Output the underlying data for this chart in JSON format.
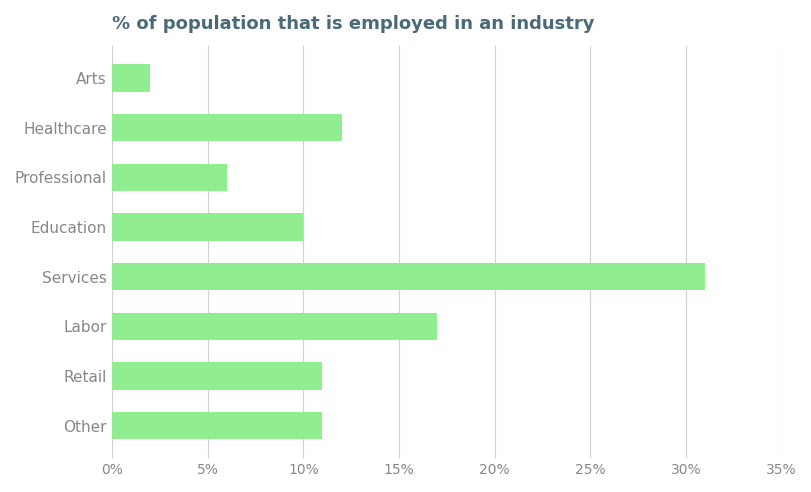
{
  "title": "% of population that is employed in an industry",
  "categories": [
    "Other",
    "Retail",
    "Labor",
    "Services",
    "Education",
    "Professional",
    "Healthcare",
    "Arts"
  ],
  "values": [
    11,
    11,
    17,
    31,
    10,
    6,
    12,
    2
  ],
  "bar_color": "#90EE90",
  "bar_edge_color": "none",
  "background_color": "#ffffff",
  "grid_color": "#d0d0d0",
  "title_color": "#4a6a7a",
  "label_color": "#555555",
  "tick_color": "#888888",
  "xlim": [
    0,
    35
  ],
  "xticks": [
    0,
    5,
    10,
    15,
    20,
    25,
    30,
    35
  ],
  "title_fontsize": 13,
  "label_fontsize": 11,
  "tick_fontsize": 10,
  "bar_height": 0.55
}
